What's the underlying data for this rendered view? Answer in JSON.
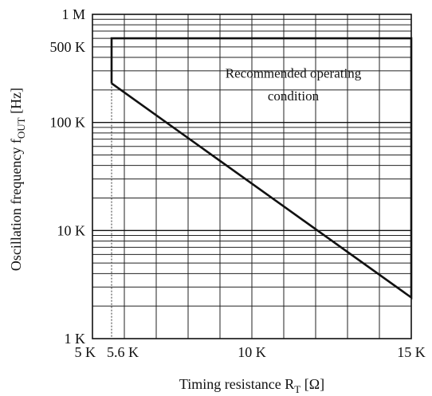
{
  "chart_data": {
    "type": "line",
    "xscale": "linear",
    "yscale": "log",
    "xlim": [
      5000,
      15000
    ],
    "ylim": [
      1000,
      1000000
    ],
    "x_ticks": [
      {
        "value": 5000,
        "label": "5 K"
      },
      {
        "value": 5600,
        "label": "5.6 K"
      },
      {
        "value": 10000,
        "label": "10 K"
      },
      {
        "value": 15000,
        "label": "15 K"
      }
    ],
    "y_ticks": [
      {
        "value": 1000,
        "label": "1 K"
      },
      {
        "value": 10000,
        "label": "10 K"
      },
      {
        "value": 100000,
        "label": "100 K"
      },
      {
        "value": 500000,
        "label": "500 K"
      },
      {
        "value": 1000000,
        "label": "1 M"
      }
    ],
    "xlabel": {
      "main": "Timing resistance R",
      "sub": "T",
      "unit": " [Ω]"
    },
    "ylabel": {
      "main": "Oscillation frequency  f",
      "sub": "OUT",
      "unit": " [Hz]"
    },
    "grid": true,
    "series": [
      {
        "x": [
          5600,
          5600,
          15000,
          15000,
          5600
        ],
        "y": [
          230000,
          600000,
          600000,
          2400,
          230000
        ]
      }
    ],
    "reference_line": {
      "x": 5600,
      "style": "dotted"
    },
    "annotation": {
      "lines": [
        "Recommended operating",
        "condition"
      ],
      "x": 11300,
      "y_lines": [
        260000,
        160000
      ]
    }
  }
}
